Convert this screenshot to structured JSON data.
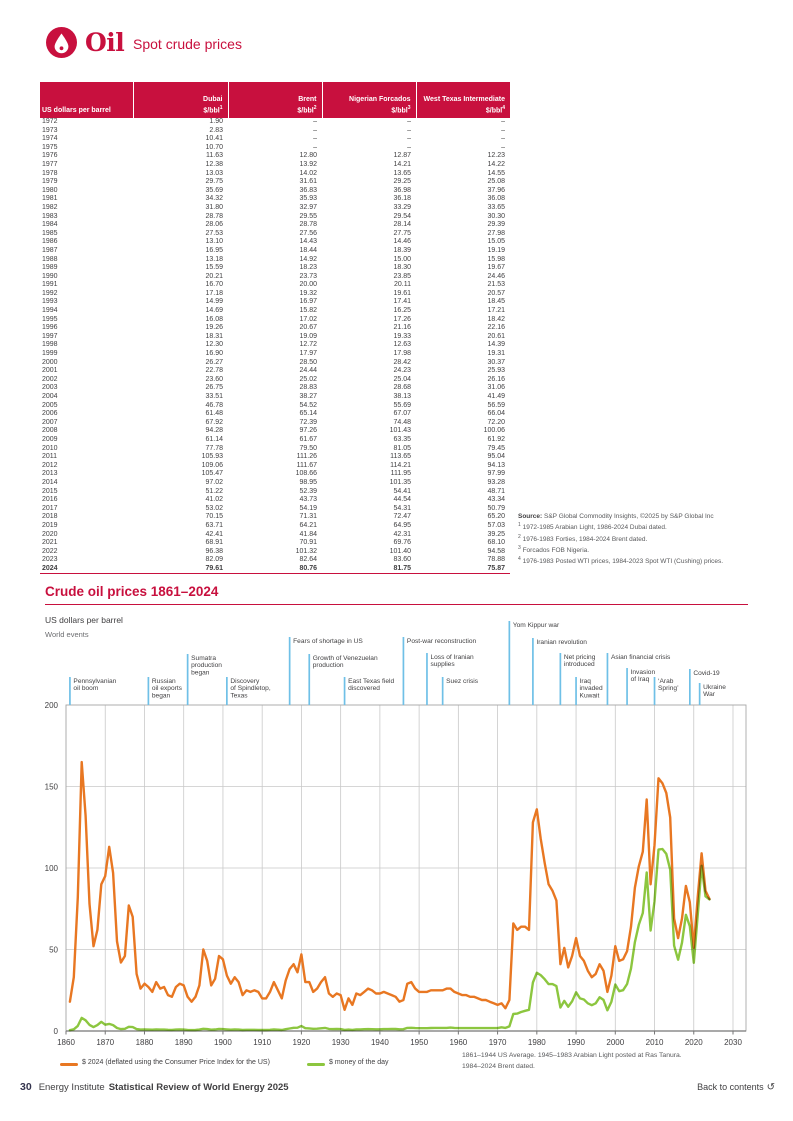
{
  "header": {
    "title": "Oil",
    "subtitle": "Spot crude prices"
  },
  "table": {
    "unit_label": "US dollars per barrel",
    "columns": [
      {
        "name": "Dubai",
        "unit": "$/bbl",
        "sup": "1"
      },
      {
        "name": "Brent",
        "unit": "$/bbl",
        "sup": "2"
      },
      {
        "name": "Nigerian Forcados",
        "unit": "$/bbl",
        "sup": "3"
      },
      {
        "name": "West Texas Intermediate",
        "unit": "$/bbl",
        "sup": "4"
      }
    ],
    "rows": [
      [
        "1972",
        "1.90",
        "–",
        "–",
        "–"
      ],
      [
        "1973",
        "2.83",
        "–",
        "–",
        "–"
      ],
      [
        "1974",
        "10.41",
        "–",
        "–",
        "–"
      ],
      [
        "1975",
        "10.70",
        "–",
        "–",
        "–"
      ],
      [
        "1976",
        "11.63",
        "12.80",
        "12.87",
        "12.23"
      ],
      [
        "1977",
        "12.38",
        "13.92",
        "14.21",
        "14.22"
      ],
      [
        "1978",
        "13.03",
        "14.02",
        "13.65",
        "14.55"
      ],
      [
        "1979",
        "29.75",
        "31.61",
        "29.25",
        "25.08"
      ],
      [
        "1980",
        "35.69",
        "36.83",
        "36.98",
        "37.96"
      ],
      [
        "1981",
        "34.32",
        "35.93",
        "36.18",
        "36.08"
      ],
      [
        "1982",
        "31.80",
        "32.97",
        "33.29",
        "33.65"
      ],
      [
        "1983",
        "28.78",
        "29.55",
        "29.54",
        "30.30"
      ],
      [
        "1984",
        "28.06",
        "28.78",
        "28.14",
        "29.39"
      ],
      [
        "1985",
        "27.53",
        "27.56",
        "27.75",
        "27.98"
      ],
      [
        "1986",
        "13.10",
        "14.43",
        "14.46",
        "15.05"
      ],
      [
        "1987",
        "16.95",
        "18.44",
        "18.39",
        "19.19"
      ],
      [
        "1988",
        "13.18",
        "14.92",
        "15.00",
        "15.98"
      ],
      [
        "1989",
        "15.59",
        "18.23",
        "18.30",
        "19.67"
      ],
      [
        "1990",
        "20.21",
        "23.73",
        "23.85",
        "24.46"
      ],
      [
        "1991",
        "16.70",
        "20.00",
        "20.11",
        "21.53"
      ],
      [
        "1992",
        "17.18",
        "19.32",
        "19.61",
        "20.57"
      ],
      [
        "1993",
        "14.99",
        "16.97",
        "17.41",
        "18.45"
      ],
      [
        "1994",
        "14.69",
        "15.82",
        "16.25",
        "17.21"
      ],
      [
        "1995",
        "16.08",
        "17.02",
        "17.26",
        "18.42"
      ],
      [
        "1996",
        "19.26",
        "20.67",
        "21.16",
        "22.16"
      ],
      [
        "1997",
        "18.31",
        "19.09",
        "19.33",
        "20.61"
      ],
      [
        "1998",
        "12.30",
        "12.72",
        "12.63",
        "14.39"
      ],
      [
        "1999",
        "16.90",
        "17.97",
        "17.98",
        "19.31"
      ],
      [
        "2000",
        "26.27",
        "28.50",
        "28.42",
        "30.37"
      ],
      [
        "2001",
        "22.78",
        "24.44",
        "24.23",
        "25.93"
      ],
      [
        "2002",
        "23.60",
        "25.02",
        "25.04",
        "26.16"
      ],
      [
        "2003",
        "26.75",
        "28.83",
        "28.68",
        "31.06"
      ],
      [
        "2004",
        "33.51",
        "38.27",
        "38.13",
        "41.49"
      ],
      [
        "2005",
        "46.78",
        "54.52",
        "55.69",
        "56.59"
      ],
      [
        "2006",
        "61.48",
        "65.14",
        "67.07",
        "66.04"
      ],
      [
        "2007",
        "67.92",
        "72.39",
        "74.48",
        "72.20"
      ],
      [
        "2008",
        "94.28",
        "97.26",
        "101.43",
        "100.06"
      ],
      [
        "2009",
        "61.14",
        "61.67",
        "63.35",
        "61.92"
      ],
      [
        "2010",
        "77.78",
        "79.50",
        "81.05",
        "79.45"
      ],
      [
        "2011",
        "105.93",
        "111.26",
        "113.65",
        "95.04"
      ],
      [
        "2012",
        "109.06",
        "111.67",
        "114.21",
        "94.13"
      ],
      [
        "2013",
        "105.47",
        "108.66",
        "111.95",
        "97.99"
      ],
      [
        "2014",
        "97.02",
        "98.95",
        "101.35",
        "93.28"
      ],
      [
        "2015",
        "51.22",
        "52.39",
        "54.41",
        "48.71"
      ],
      [
        "2016",
        "41.02",
        "43.73",
        "44.54",
        "43.34"
      ],
      [
        "2017",
        "53.02",
        "54.19",
        "54.31",
        "50.79"
      ],
      [
        "2018",
        "70.15",
        "71.31",
        "72.47",
        "65.20"
      ],
      [
        "2019",
        "63.71",
        "64.21",
        "64.95",
        "57.03"
      ],
      [
        "2020",
        "42.41",
        "41.84",
        "42.31",
        "39.25"
      ],
      [
        "2021",
        "68.91",
        "70.91",
        "69.76",
        "68.10"
      ],
      [
        "2022",
        "96.38",
        "101.32",
        "101.40",
        "94.58"
      ],
      [
        "2023",
        "82.09",
        "82.64",
        "83.60",
        "78.88"
      ],
      [
        "2024",
        "79.61",
        "80.76",
        "81.75",
        "75.87"
      ]
    ],
    "source_label": "Source:",
    "source_text": " S&P Global Commodity Insights, ©2025 by S&P Global Inc",
    "footnotes": [
      {
        "sup": "1",
        "text": "1972-1985 Arabian Light, 1986-2024 Dubai dated."
      },
      {
        "sup": "2",
        "text": "1976-1983 Forties, 1984-2024 Brent dated."
      },
      {
        "sup": "3",
        "text": "Forcados FOB Nigeria."
      },
      {
        "sup": "4",
        "text": "1976-1983 Posted WTI prices, 1984-2023 Spot WTI (Cushing) prices."
      }
    ]
  },
  "chart_data": {
    "type": "line",
    "title": "Crude oil prices 1861–2024",
    "unit_label": "US dollars per barrel",
    "events_label": "World events",
    "year_start": 1861,
    "year_end": 2024,
    "xlim": [
      1860,
      2030
    ],
    "ylim": [
      0,
      200
    ],
    "yticks": [
      0,
      50,
      100,
      150,
      200
    ],
    "xticks": [
      1860,
      1870,
      1880,
      1890,
      1900,
      1910,
      1920,
      1930,
      1940,
      1950,
      1960,
      1970,
      1980,
      1990,
      2000,
      2010,
      2020,
      2030
    ],
    "grid": true,
    "legend_position": "bottom",
    "colors": {
      "grid": "#c9c9c9",
      "frame": "#a8a8a8",
      "axis": "#767676",
      "event_tick": "#6fc0e7",
      "text": "#414042"
    },
    "series": [
      {
        "name": "$ 2024 (deflated using the Consumer Price Index for the US)",
        "color": "#e87722",
        "values": [
          18,
          33,
          82,
          165,
          132,
          78,
          52,
          62,
          90,
          95,
          113,
          97,
          55,
          42,
          46,
          77,
          70,
          35,
          26,
          29,
          27,
          24,
          30,
          26,
          27,
          22,
          21,
          27,
          29,
          28,
          21,
          18,
          21,
          28,
          50,
          43,
          28,
          32,
          46,
          44,
          34,
          29,
          33,
          30,
          22,
          25,
          24,
          25,
          24,
          20,
          20,
          24,
          30,
          25,
          20,
          31,
          38,
          41,
          36,
          47,
          30,
          30,
          24,
          26,
          30,
          33,
          23,
          21,
          23,
          22,
          13,
          20,
          16,
          23,
          22,
          24,
          26,
          25,
          23,
          23,
          24,
          23,
          22,
          21,
          18,
          19,
          29,
          30,
          26,
          24,
          24,
          24,
          25,
          25,
          25,
          25,
          26,
          26,
          24,
          23,
          22,
          22,
          21,
          21,
          20,
          19,
          19,
          18,
          17,
          16,
          17,
          14,
          19,
          66,
          62,
          64,
          64,
          62,
          128,
          136,
          118,
          103,
          90,
          86,
          80,
          41,
          51,
          39,
          46,
          57,
          46,
          43,
          37,
          33,
          35,
          41,
          37,
          24,
          34,
          52,
          43,
          44,
          49,
          64,
          88,
          101,
          110,
          142,
          90,
          114,
          155,
          152,
          146,
          131,
          69,
          57,
          69,
          89,
          79,
          51,
          82,
          109,
          86,
          81
        ]
      },
      {
        "name": "$ money of the day",
        "color": "#8cc63f",
        "values": [
          0.49,
          1.05,
          3.15,
          8.06,
          6.59,
          3.74,
          2.41,
          3.62,
          5.64,
          3.86,
          4.34,
          3.64,
          1.83,
          1.17,
          1.35,
          2.56,
          2.42,
          1.19,
          0.86,
          0.95,
          0.86,
          0.78,
          1.0,
          0.84,
          0.88,
          0.71,
          0.67,
          0.88,
          0.94,
          0.87,
          0.67,
          0.56,
          0.64,
          0.84,
          1.36,
          1.18,
          0.79,
          0.91,
          1.29,
          1.19,
          0.96,
          0.8,
          0.94,
          0.86,
          0.62,
          0.73,
          0.72,
          0.72,
          0.7,
          0.61,
          0.61,
          0.74,
          0.95,
          0.81,
          0.64,
          1.1,
          1.56,
          1.98,
          2.01,
          3.07,
          1.73,
          1.61,
          1.34,
          1.43,
          1.68,
          1.88,
          1.3,
          1.17,
          1.27,
          1.19,
          0.65,
          0.87,
          0.67,
          1.0,
          0.97,
          1.09,
          1.18,
          1.13,
          1.02,
          1.02,
          1.14,
          1.19,
          1.2,
          1.21,
          1.05,
          1.12,
          1.9,
          1.99,
          1.78,
          1.71,
          1.71,
          1.71,
          1.84,
          1.93,
          1.93,
          1.93,
          1.9,
          2.08,
          1.92,
          1.8,
          1.8,
          1.8,
          1.8,
          1.8,
          1.8,
          1.8,
          1.8,
          1.8,
          1.8,
          1.8,
          2.24,
          1.9,
          2.83,
          10.41,
          10.7,
          11.63,
          12.38,
          13.03,
          29.75,
          35.69,
          34.32,
          31.8,
          28.78,
          28.78,
          27.56,
          14.43,
          18.44,
          14.92,
          18.23,
          23.73,
          20.0,
          19.32,
          16.97,
          15.82,
          17.02,
          20.67,
          19.09,
          12.72,
          17.97,
          28.5,
          24.44,
          25.02,
          28.83,
          38.27,
          54.52,
          65.14,
          72.39,
          97.26,
          61.67,
          79.5,
          111.26,
          111.67,
          108.66,
          98.95,
          52.39,
          43.73,
          54.19,
          71.31,
          64.21,
          41.84,
          70.91,
          101.32,
          82.64,
          80.76
        ]
      }
    ],
    "events": [
      {
        "id": "pennsylvanian-oil-boom",
        "year": 1861,
        "top": 67,
        "lines": [
          "Pennsylvanian",
          "oil boom"
        ]
      },
      {
        "id": "russian-oil-exports",
        "year": 1881,
        "top": 67,
        "lines": [
          "Russian",
          "oil exports",
          "began"
        ]
      },
      {
        "id": "sumatra-production",
        "year": 1891,
        "top": 44,
        "lines": [
          "Sumatra",
          "production",
          "began"
        ]
      },
      {
        "id": "spindletop-discovery",
        "year": 1901,
        "top": 67,
        "lines": [
          "Discovery",
          "of Spindletop,",
          "Texas"
        ]
      },
      {
        "id": "fears-of-shortage-us",
        "year": 1917,
        "top": 27,
        "lines": [
          "Fears of shortage in US"
        ]
      },
      {
        "id": "venezuelan-production-growth",
        "year": 1922,
        "top": 44,
        "lines": [
          "Growth of Venezuelan",
          "production"
        ]
      },
      {
        "id": "east-texas-field",
        "year": 1931,
        "top": 67,
        "lines": [
          "East Texas field",
          "discovered"
        ]
      },
      {
        "id": "post-war-reconstruction",
        "year": 1946,
        "top": 27,
        "lines": [
          "Post-war reconstruction"
        ]
      },
      {
        "id": "loss-of-iranian-supplies",
        "year": 1952,
        "top": 43,
        "lines": [
          "Loss of Iranian",
          "supplies"
        ]
      },
      {
        "id": "suez-crisis",
        "year": 1956,
        "top": 67,
        "lines": [
          "Suez crisis"
        ]
      },
      {
        "id": "yom-kippur-war",
        "year": 1973,
        "top": 11,
        "lines": [
          "Yom Kippur war"
        ]
      },
      {
        "id": "iranian-revolution",
        "year": 1979,
        "top": 28,
        "lines": [
          "Iranian revolution"
        ]
      },
      {
        "id": "net-pricing-introduced",
        "year": 1986,
        "top": 43,
        "lines": [
          "Net pricing",
          "introduced"
        ]
      },
      {
        "id": "iraq-invaded-kuwait",
        "year": 1990,
        "top": 67,
        "lines": [
          "Iraq",
          "invaded",
          "Kuwait"
        ]
      },
      {
        "id": "asian-financial-crisis",
        "year": 1998,
        "top": 43,
        "lines": [
          "Asian financial crisis"
        ]
      },
      {
        "id": "invasion-of-iraq",
        "year": 2003,
        "top": 58,
        "lines": [
          "Invasion",
          "of Iraq"
        ]
      },
      {
        "id": "arab-spring",
        "year": 2010,
        "top": 67,
        "lines": [
          "‘Arab",
          "Spring’"
        ]
      },
      {
        "id": "covid-19",
        "year": 2019,
        "top": 59,
        "lines": [
          "Covid-19"
        ]
      },
      {
        "id": "ukraine-war",
        "year": 2021.5,
        "top": 73,
        "lines": [
          "Ukraine",
          "War"
        ]
      }
    ],
    "note_lines": [
      "1861–1944 US Average. 1945–1983 Arabian Light posted at Ras Tanura.",
      "1984–2024 Brent dated."
    ]
  },
  "footer": {
    "page_number": "30",
    "org": "Energy Institute",
    "publication": "Statistical Review of World Energy 2025",
    "back_link": "Back to contents",
    "back_icon": "↺"
  },
  "brand_color": "#c8103e"
}
